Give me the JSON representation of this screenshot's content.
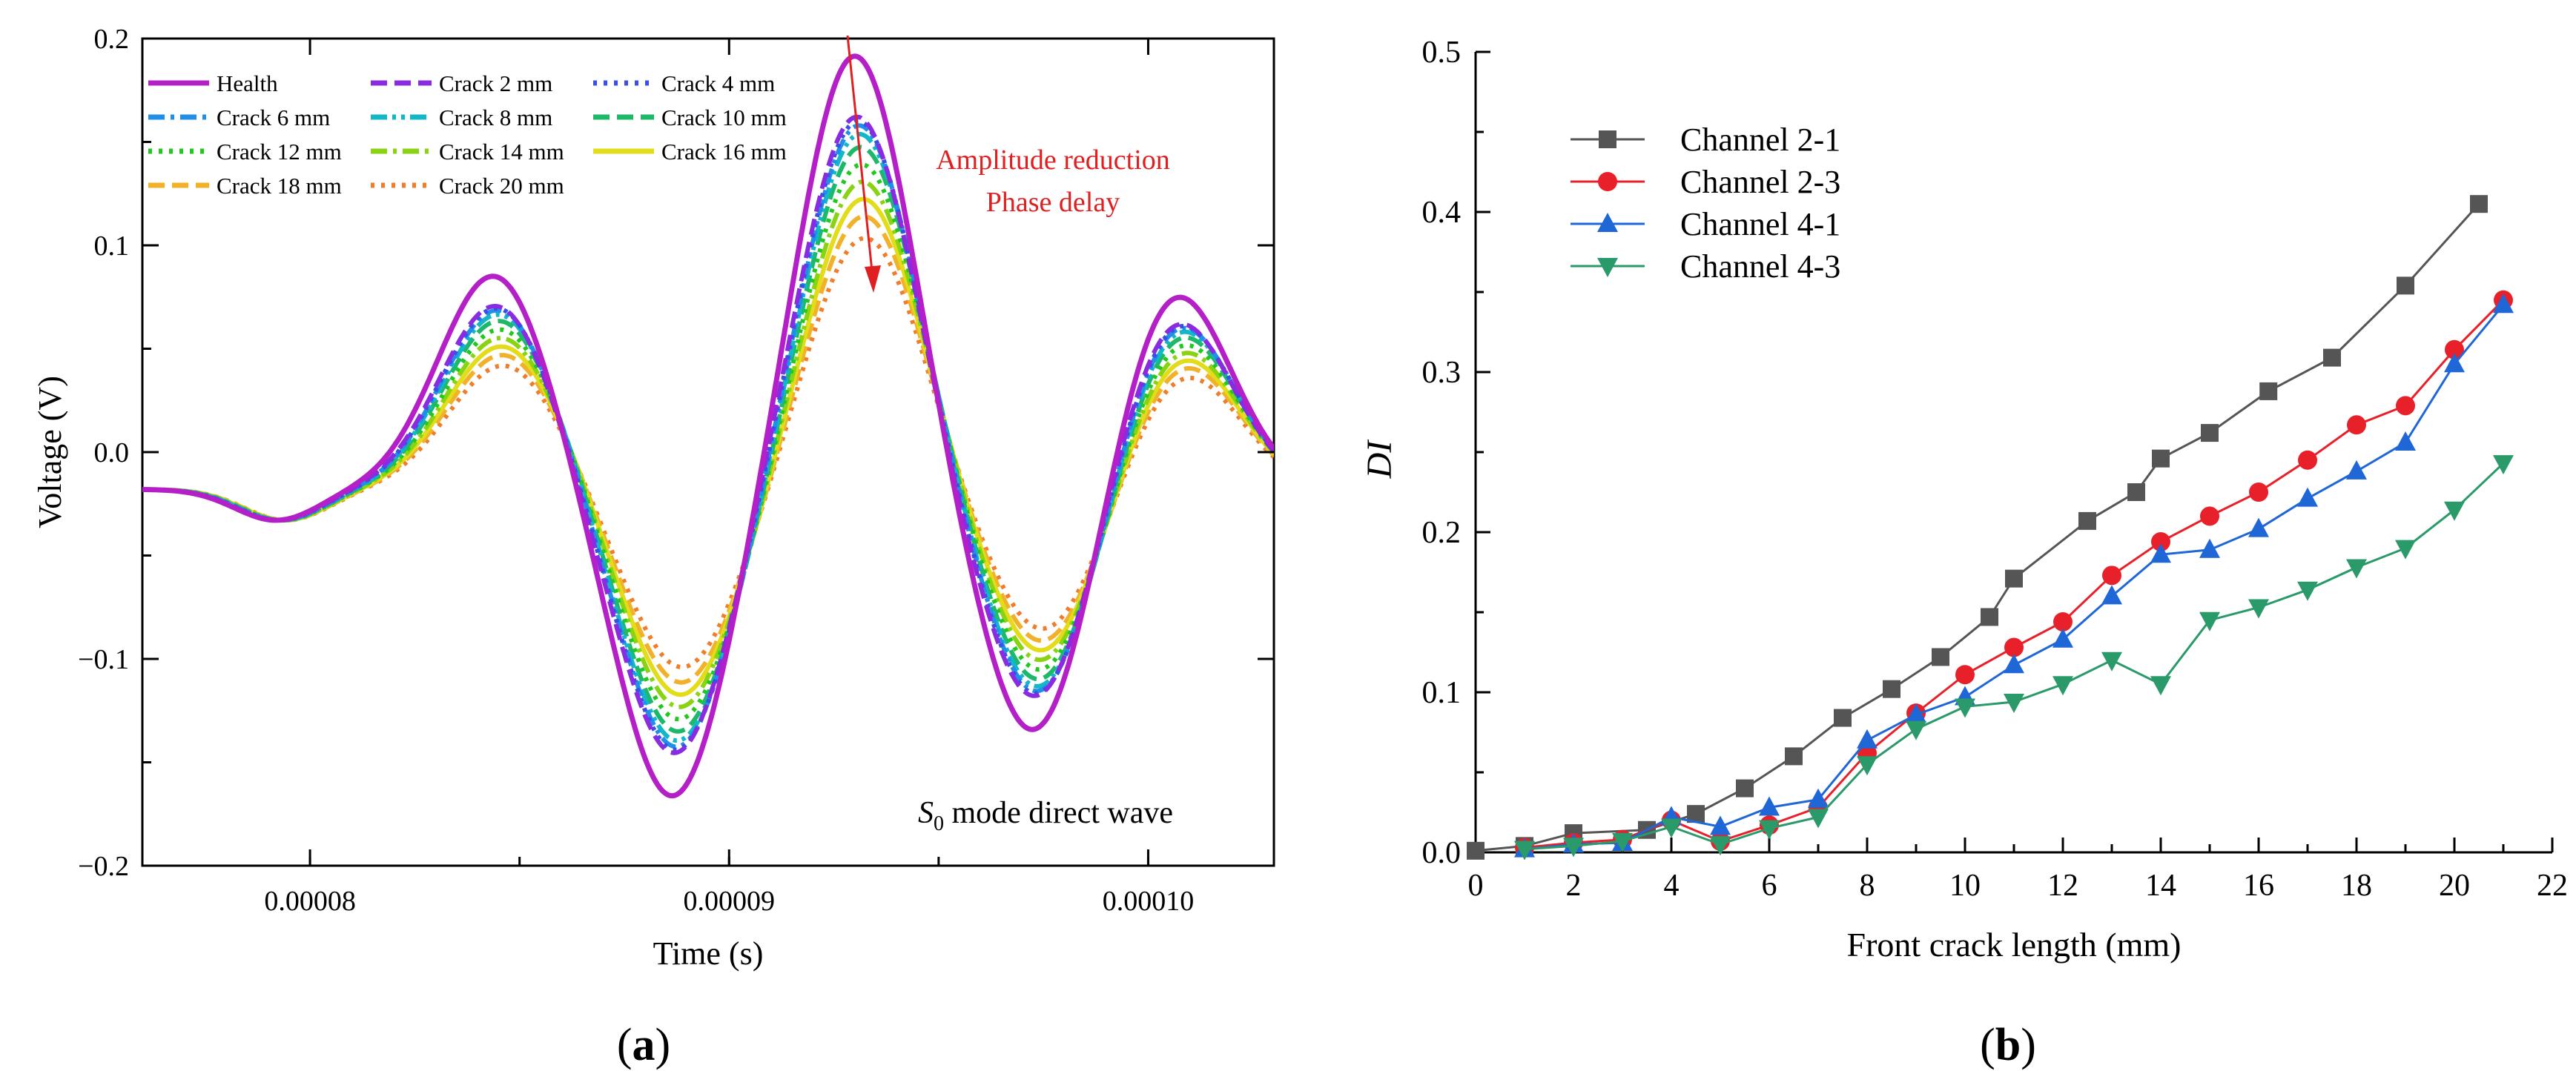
{
  "chart_data": [
    {
      "type": "line",
      "panel_label": "a",
      "xlabel": "Time (s)",
      "ylabel": "Voltage (V)",
      "xlim": [
        7.6e-05,
        0.000103
      ],
      "ylim": [
        -0.2,
        0.2
      ],
      "x_ticks": [
        8e-05,
        9e-05,
        0.0001
      ],
      "x_tick_labels": [
        "0.00008",
        "0.00009",
        "0.00010"
      ],
      "y_ticks": [
        -0.2,
        -0.1,
        0.0,
        0.1,
        0.2
      ],
      "y_tick_labels": [
        "−0.2",
        "−0.1",
        "0.0",
        "0.1",
        "0.2"
      ],
      "annotations": {
        "arrow_line1": "Amplitude reduction",
        "arrow_line2": "Phase delay",
        "mode_symbol": "S",
        "mode_sub": "0",
        "mode_text": " mode direct wave"
      },
      "series": [
        {
          "name": "Health",
          "color": "#b51fc8",
          "dash": "solid",
          "amp_scale": 1.0,
          "phase_shift_us": 0.0,
          "offset": -0.018
        },
        {
          "name": "Crack 2 mm",
          "color": "#8a2be2",
          "dash": "dash",
          "amp_scale": 0.86,
          "phase_shift_us": 0.05,
          "offset": -0.018
        },
        {
          "name": "Crack 4 mm",
          "color": "#3a4fe6",
          "dash": "dot",
          "amp_scale": 0.85,
          "phase_shift_us": 0.08,
          "offset": -0.018
        },
        {
          "name": "Crack 6 mm",
          "color": "#1f8fe8",
          "dash": "dashdot",
          "amp_scale": 0.84,
          "phase_shift_us": 0.1,
          "offset": -0.018
        },
        {
          "name": "Crack 8 mm",
          "color": "#12b8c8",
          "dash": "dashdotdot",
          "amp_scale": 0.82,
          "phase_shift_us": 0.12,
          "offset": -0.018
        },
        {
          "name": "Crack 10 mm",
          "color": "#1db86a",
          "dash": "dash",
          "amp_scale": 0.79,
          "phase_shift_us": 0.14,
          "offset": -0.018
        },
        {
          "name": "Crack 12 mm",
          "color": "#22c91c",
          "dash": "dot",
          "amp_scale": 0.75,
          "phase_shift_us": 0.16,
          "offset": -0.018
        },
        {
          "name": "Crack 14 mm",
          "color": "#8ad313",
          "dash": "dashdot",
          "amp_scale": 0.71,
          "phase_shift_us": 0.18,
          "offset": -0.018
        },
        {
          "name": "Crack 16 mm",
          "color": "#e3dc1a",
          "dash": "solid",
          "amp_scale": 0.67,
          "phase_shift_us": 0.2,
          "offset": -0.018
        },
        {
          "name": "Crack 18 mm",
          "color": "#f2b12a",
          "dash": "dash",
          "amp_scale": 0.63,
          "phase_shift_us": 0.22,
          "offset": -0.018
        },
        {
          "name": "Crack 20 mm",
          "color": "#f07d2a",
          "dash": "dot",
          "amp_scale": 0.58,
          "phase_shift_us": 0.24,
          "offset": -0.018
        }
      ]
    },
    {
      "type": "line",
      "panel_label": "b",
      "xlabel": "Front crack length (mm)",
      "ylabel": "DI",
      "xlim": [
        0,
        22
      ],
      "ylim": [
        0,
        0.5
      ],
      "x_ticks": [
        0,
        2,
        4,
        6,
        8,
        10,
        12,
        14,
        16,
        18,
        20,
        22
      ],
      "y_ticks": [
        0.0,
        0.1,
        0.2,
        0.3,
        0.4,
        0.5
      ],
      "y_tick_labels": [
        "0.0",
        "0.1",
        "0.2",
        "0.3",
        "0.4",
        "0.5"
      ],
      "series": [
        {
          "name": "Channel 2-1",
          "color": "#555555",
          "marker": "square",
          "x": [
            0,
            1,
            2,
            3.5,
            4.5,
            5.5,
            6.5,
            7.5,
            8.5,
            9.5,
            10.5,
            11,
            12.5,
            13.5,
            14,
            15,
            16.2,
            17.5,
            19,
            20.5
          ],
          "y": [
            0.001,
            0.004,
            0.012,
            0.014,
            0.024,
            0.04,
            0.06,
            0.084,
            0.102,
            0.122,
            0.147,
            0.171,
            0.207,
            0.225,
            0.246,
            0.262,
            0.288,
            0.309,
            0.354,
            0.405
          ]
        },
        {
          "name": "Channel 2-3",
          "color": "#e8202a",
          "marker": "circle",
          "x": [
            1,
            2,
            3,
            4,
            5,
            6,
            7,
            8,
            9,
            10,
            11,
            12,
            13,
            14,
            15,
            16,
            17,
            18,
            19,
            20,
            21
          ],
          "y": [
            0.003,
            0.006,
            0.008,
            0.02,
            0.007,
            0.017,
            0.028,
            0.062,
            0.087,
            0.111,
            0.128,
            0.144,
            0.173,
            0.194,
            0.21,
            0.225,
            0.245,
            0.267,
            0.279,
            0.314,
            0.345
          ]
        },
        {
          "name": "Channel 4-1",
          "color": "#1f66d6",
          "marker": "triangle-up",
          "x": [
            1,
            2,
            3,
            4,
            5,
            6,
            7,
            8,
            9,
            10,
            11,
            12,
            13,
            14,
            15,
            16,
            17,
            18,
            19,
            20,
            21
          ],
          "y": [
            0.002,
            0.005,
            0.006,
            0.022,
            0.016,
            0.028,
            0.033,
            0.07,
            0.086,
            0.097,
            0.117,
            0.133,
            0.16,
            0.186,
            0.189,
            0.202,
            0.221,
            0.238,
            0.256,
            0.305,
            0.342
          ]
        },
        {
          "name": "Channel 4-3",
          "color": "#2a9a6a",
          "marker": "triangle-down",
          "x": [
            1,
            2,
            3,
            4,
            5,
            6,
            7,
            8,
            9,
            10,
            11,
            12,
            13,
            14,
            15,
            16,
            17,
            18,
            19,
            20,
            21
          ],
          "y": [
            0.002,
            0.004,
            0.007,
            0.016,
            0.005,
            0.015,
            0.022,
            0.055,
            0.077,
            0.091,
            0.094,
            0.105,
            0.12,
            0.105,
            0.145,
            0.153,
            0.164,
            0.178,
            0.19,
            0.214,
            0.243
          ]
        }
      ]
    }
  ]
}
